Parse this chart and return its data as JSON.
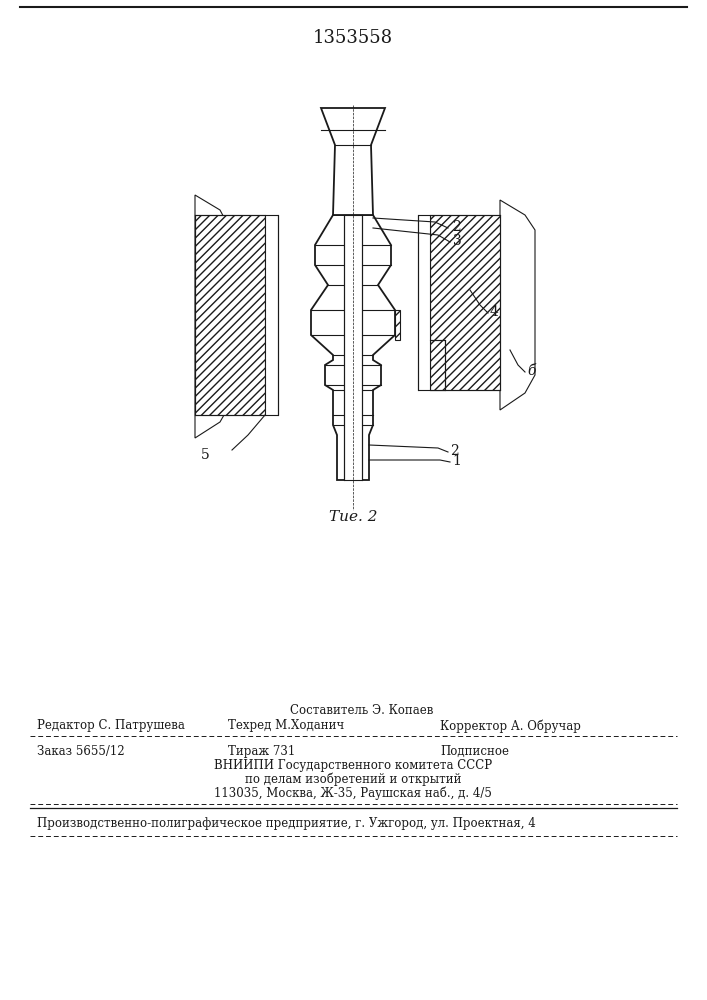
{
  "patent_number": "1353558",
  "figure_label": "Τие. 2",
  "bg_color": "#ffffff",
  "line_color": "#1a1a1a",
  "footer_compiler": "Составитель Э. Копаев",
  "footer_editor": "Редактор С. Патрушева",
  "footer_techred": "Техред М.Ходанич",
  "footer_corrector": "Корректор А. Обручар",
  "footer_order": "Заказ 5655/12",
  "footer_tirazh": "Тираж 731",
  "footer_podpisnoe": "Подписное",
  "footer_vnipi1": "ВНИИПИ Государственного комитета СССР",
  "footer_vnipi2": "по делам изобретений и открытий",
  "footer_vnipi3": "113035, Москва, Ж-35, Раушская наб., д. 4/5",
  "footer_factory": "Производственно-полиграфическое предприятие, г. Ужгород, ул. Проектная, 4"
}
